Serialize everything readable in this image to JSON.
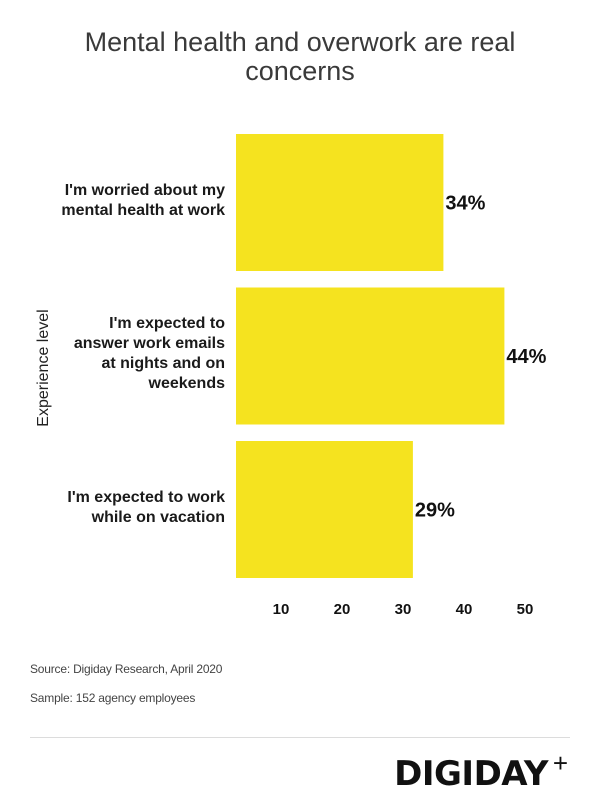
{
  "chart_data": {
    "type": "bar",
    "orientation": "horizontal",
    "title": "Mental health and overwork are real concerns",
    "categories": [
      "I'm worried about my mental health at work",
      "I'm expected to answer work emails at nights and on weekends",
      "I'm expected to work while on vacation"
    ],
    "category_lines": [
      [
        "I'm worried about my",
        "mental health at work"
      ],
      [
        "I'm expected to",
        "answer work emails",
        "at nights and on",
        "weekends"
      ],
      [
        "I'm expected to work",
        "while on vacation"
      ]
    ],
    "values": [
      34,
      44,
      29
    ],
    "data_labels": [
      "34%",
      "44%",
      "29%"
    ],
    "ylabel": "Experience level",
    "xlabel": "",
    "x_ticks": [
      10,
      20,
      30,
      40,
      50
    ],
    "xlim": [
      0,
      55
    ],
    "grid": false,
    "bar_color": "#f5e31f"
  },
  "footer": {
    "source": "Source: Digiday Research, April 2020",
    "sample": "Sample: 152 agency employees",
    "logo": "DIGIDAY",
    "logo_plus": "+"
  }
}
